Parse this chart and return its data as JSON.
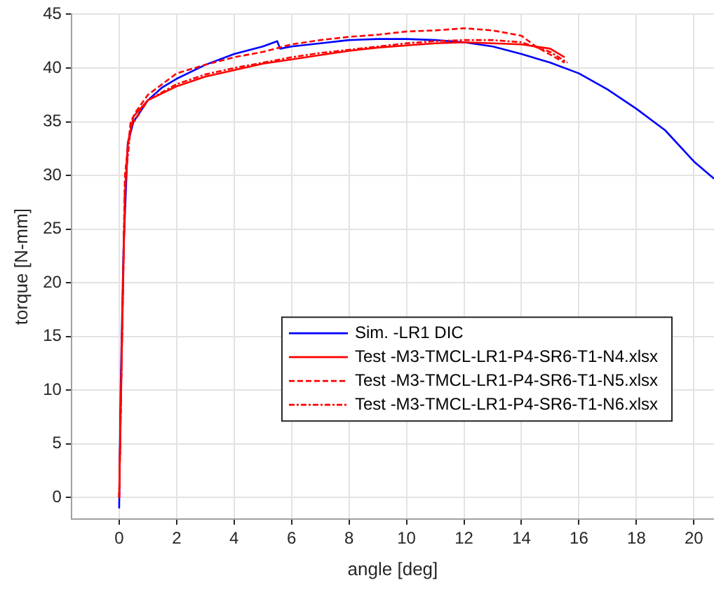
{
  "chart_data": {
    "type": "line",
    "xlabel": "angle [deg]",
    "ylabel": "torque [N-mm]",
    "xlim": [
      -1.66,
      20.7
    ],
    "xticks": [
      0,
      2,
      4,
      6,
      8,
      10,
      12,
      14,
      16,
      18,
      20
    ],
    "ylim": [
      -2,
      45
    ],
    "yticks": [
      0,
      5,
      10,
      15,
      20,
      25,
      30,
      35,
      40,
      45
    ],
    "grid": true,
    "legend": "right",
    "marker": "none",
    "series": [
      {
        "name": "Sim. -LR1 DIC",
        "color": "#0000ff",
        "line_style": "solid",
        "x": [
          0,
          0.05,
          0.15,
          0.3,
          0.5,
          1,
          1.5,
          2,
          3,
          4,
          5,
          5.5,
          5.6,
          6,
          7,
          8,
          9,
          10,
          11,
          12,
          13,
          14,
          15,
          16,
          17,
          18,
          19,
          20,
          20.7
        ],
        "values": [
          -1,
          10,
          23,
          33,
          35,
          37,
          38.2,
          39,
          40.3,
          41.3,
          42,
          42.5,
          41.8,
          42,
          42.3,
          42.6,
          42.7,
          42.7,
          42.6,
          42.4,
          42,
          41.3,
          40.5,
          39.5,
          38,
          36.2,
          34.2,
          31.3,
          29.7
        ]
      },
      {
        "name": "Test -M3-TMCL-LR1-P4-SR6-T1-N4.xlsx",
        "color": "#ff0000",
        "line_style": "solid",
        "x": [
          0,
          0.1,
          0.2,
          0.3,
          0.5,
          1,
          2,
          3,
          4,
          5,
          6,
          7,
          8,
          9,
          10,
          11,
          12,
          13,
          14,
          15,
          15.5
        ],
        "values": [
          0,
          15,
          28,
          33,
          35.5,
          37,
          38.3,
          39.2,
          39.8,
          40.4,
          40.8,
          41.2,
          41.6,
          41.9,
          42.1,
          42.3,
          42.4,
          42.3,
          42.2,
          41.8,
          41
        ]
      },
      {
        "name": "Test -M3-TMCL-LR1-P4-SR6-T1-N5.xlsx",
        "color": "#ff0000",
        "line_style": "dashed",
        "x": [
          0,
          0.2,
          0.4,
          0.6,
          1,
          2,
          3,
          4,
          5,
          6,
          7,
          8,
          9,
          10,
          11,
          12,
          13,
          14,
          14.5,
          15.5
        ],
        "values": [
          0,
          30,
          35,
          36,
          37.5,
          39.5,
          40.3,
          41,
          41.5,
          42.2,
          42.6,
          42.9,
          43.1,
          43.4,
          43.5,
          43.7,
          43.5,
          43,
          42,
          40.5
        ]
      },
      {
        "name": "Test -M3-TMCL-LR1-P4-SR6-T1-N6.xlsx",
        "color": "#ff0000",
        "line_style": "dashdot",
        "x": [
          0,
          0.2,
          0.4,
          1,
          2,
          3,
          4,
          5,
          6,
          7,
          8,
          9,
          10,
          11,
          12,
          13,
          14,
          15,
          15.6
        ],
        "values": [
          0,
          29,
          34.5,
          37,
          38.5,
          39.4,
          40,
          40.5,
          41,
          41.4,
          41.7,
          42,
          42.3,
          42.5,
          42.6,
          42.6,
          42.4,
          41.5,
          40.5
        ]
      }
    ]
  }
}
